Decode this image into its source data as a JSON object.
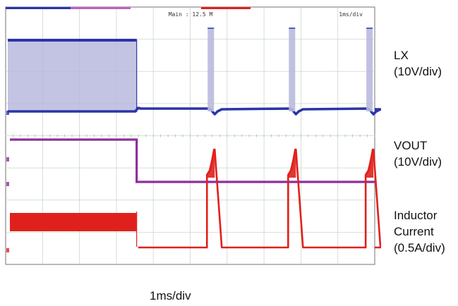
{
  "chart_data": {
    "type": "line",
    "header": {
      "center": "Main : 12.5 M",
      "right": "1ms/div"
    },
    "time_scale": "1ms/div",
    "x_divisions": 10,
    "y_divisions": 8,
    "grid": true,
    "transition_ms": 3.55,
    "pulse_times_ms": [
      5.55,
      7.75,
      9.85
    ],
    "series": [
      {
        "name": "LX",
        "scale": "10V/div",
        "color": "#2a35a8",
        "fill_color": "#b9b9de"
      },
      {
        "name": "VOUT",
        "scale": "10V/div",
        "color": "#8e2d9c"
      },
      {
        "name": "Inductor Current",
        "scale": "0.5A/div",
        "color": "#e0201c"
      }
    ]
  },
  "labels": {
    "lx_name": "LX",
    "lx_scale": "(10V/div)",
    "vout_name": "VOUT",
    "vout_scale": "(10V/div)",
    "il_name1": "Inductor",
    "il_name2": "Current",
    "il_scale": "(0.5A/div)",
    "time_base": "1ms/div"
  },
  "colors": {
    "grid": "#c8d8c8",
    "frame": "#8a8a8a",
    "background": "#ffffff"
  }
}
